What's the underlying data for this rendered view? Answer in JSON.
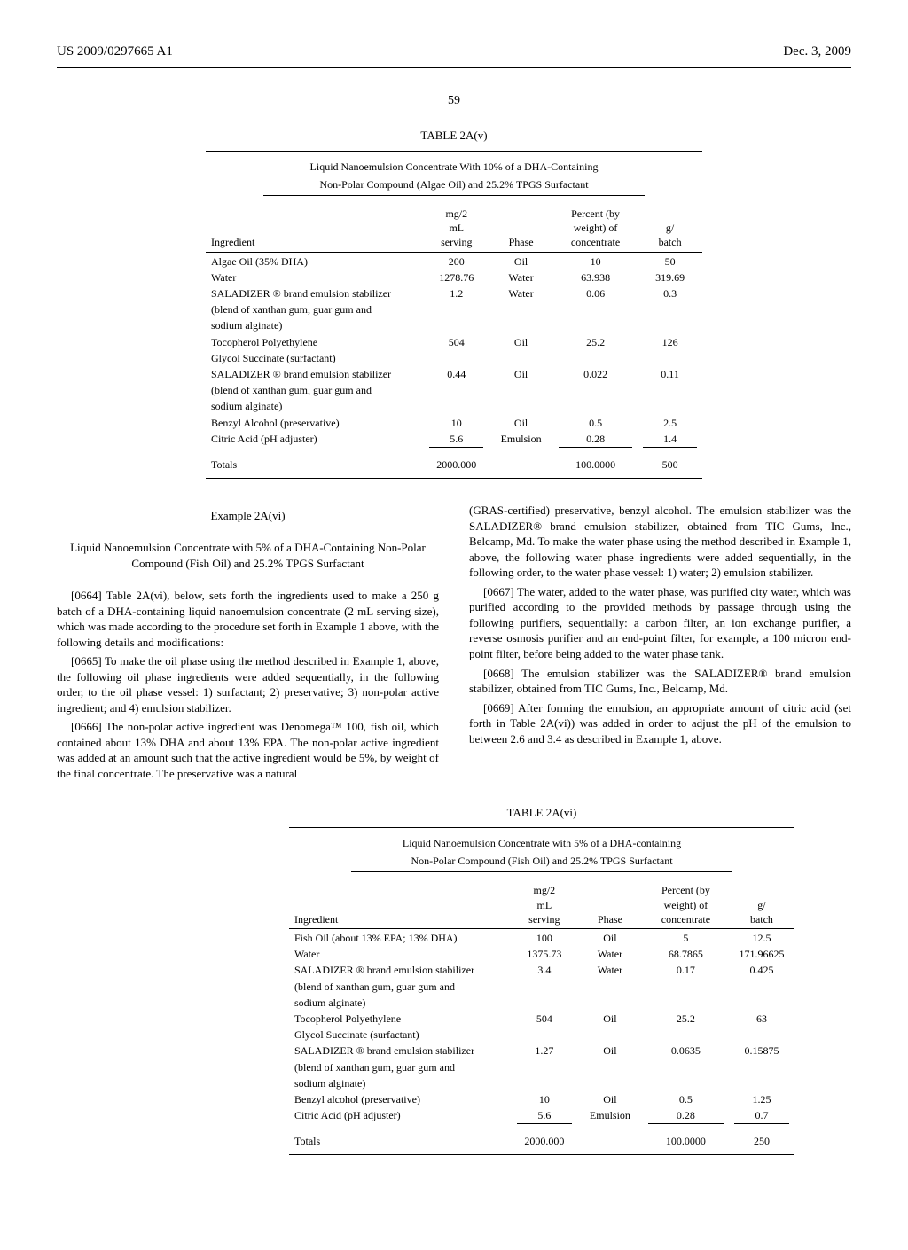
{
  "header": {
    "left": "US 2009/0297665 A1",
    "right": "Dec. 3, 2009"
  },
  "page_number": "59",
  "table_2a_v": {
    "title": "TABLE 2A(v)",
    "subtitle1": "Liquid Nanoemulsion Concentrate With 10% of a DHA-Containing",
    "subtitle2": "Non-Polar Compound (Algae Oil) and 25.2% TPGS Surfactant",
    "columns": {
      "c1": "Ingredient",
      "c2a": "mg/2",
      "c2b": "mL",
      "c2c": "serving",
      "c3": "Phase",
      "c4a": "Percent (by",
      "c4b": "weight) of",
      "c4c": "concentrate",
      "c5a": "g/",
      "c5b": "batch"
    },
    "rows": [
      {
        "ing": "Algae Oil (35% DHA)",
        "mg": "200",
        "phase": "Oil",
        "pct": "10",
        "g": "50"
      },
      {
        "ing": "Water",
        "mg": "1278.76",
        "phase": "Water",
        "pct": "63.938",
        "g": "319.69"
      },
      {
        "ing": "SALADIZER ® brand emulsion stabilizer",
        "mg": "1.2",
        "phase": "Water",
        "pct": "0.06",
        "g": "0.3"
      },
      {
        "ing": "(blend of xanthan gum, guar gum and",
        "mg": "",
        "phase": "",
        "pct": "",
        "g": ""
      },
      {
        "ing": "sodium alginate)",
        "mg": "",
        "phase": "",
        "pct": "",
        "g": ""
      },
      {
        "ing": "Tocopherol Polyethylene",
        "mg": "504",
        "phase": "Oil",
        "pct": "25.2",
        "g": "126"
      },
      {
        "ing": "Glycol Succinate (surfactant)",
        "mg": "",
        "phase": "",
        "pct": "",
        "g": ""
      },
      {
        "ing": "SALADIZER ® brand emulsion stabilizer",
        "mg": "0.44",
        "phase": "Oil",
        "pct": "0.022",
        "g": "0.11"
      },
      {
        "ing": "(blend of xanthan gum, guar gum and",
        "mg": "",
        "phase": "",
        "pct": "",
        "g": ""
      },
      {
        "ing": "sodium alginate)",
        "mg": "",
        "phase": "",
        "pct": "",
        "g": ""
      },
      {
        "ing": "Benzyl Alcohol (preservative)",
        "mg": "10",
        "phase": "Oil",
        "pct": "0.5",
        "g": "2.5"
      },
      {
        "ing": "Citric Acid (pH adjuster)",
        "mg": "5.6",
        "phase": "Emulsion",
        "pct": "0.28",
        "g": "1.4"
      }
    ],
    "totals": {
      "ing": "Totals",
      "mg": "2000.000",
      "phase": "",
      "pct": "100.0000",
      "g": "500"
    }
  },
  "example": {
    "title": "Example 2A(vi)",
    "subtitle": "Liquid Nanoemulsion Concentrate with 5% of a DHA-Containing Non-Polar Compound (Fish Oil) and 25.2% TPGS Surfactant"
  },
  "paras": {
    "p0664": "[0664]   Table 2A(vi), below, sets forth the ingredients used to make a 250 g batch of a DHA-containing liquid nanoemulsion concentrate (2 mL serving size), which was made according to the procedure set forth in Example 1 above, with the following details and modifications:",
    "p0665": "[0665]   To make the oil phase using the method described in Example 1, above, the following oil phase ingredients were added sequentially, in the following order, to the oil phase vessel: 1) surfactant; 2) preservative; 3) non-polar active ingredient; and 4) emulsion stabilizer.",
    "p0666": "[0666]   The non-polar active ingredient was Denomega™ 100, fish oil, which contained about 13% DHA and about 13% EPA. The non-polar active ingredient was added at an amount such that the active ingredient would be 5%, by weight of the final concentrate. The preservative was a natural",
    "p_right1": "(GRAS-certified) preservative, benzyl alcohol. The emulsion stabilizer was the SALADIZER® brand emulsion stabilizer, obtained from TIC Gums, Inc., Belcamp, Md. To make the water phase using the method described in Example 1, above, the following water phase ingredients were added sequentially, in the following order, to the water phase vessel: 1) water; 2) emulsion stabilizer.",
    "p0667": "[0667]   The water, added to the water phase, was purified city water, which was purified according to the provided methods by passage through using the following purifiers, sequentially: a carbon filter, an ion exchange purifier, a reverse osmosis purifier and an end-point filter, for example, a 100 micron end-point filter, before being added to the water phase tank.",
    "p0668": "[0668]   The emulsion stabilizer was the SALADIZER® brand emulsion stabilizer, obtained from TIC Gums, Inc., Belcamp, Md.",
    "p0669": "[0669]   After forming the emulsion, an appropriate amount of citric acid (set forth in Table 2A(vi)) was added in order to adjust the pH of the emulsion to between 2.6 and 3.4 as described in Example 1, above."
  },
  "table_2a_vi": {
    "title": "TABLE 2A(vi)",
    "subtitle1": "Liquid Nanoemulsion Concentrate with 5% of a DHA-containing",
    "subtitle2": "Non-Polar Compound (Fish Oil) and 25.2% TPGS Surfactant",
    "columns": {
      "c1": "Ingredient",
      "c2a": "mg/2",
      "c2b": "mL",
      "c2c": "serving",
      "c3": "Phase",
      "c4a": "Percent (by",
      "c4b": "weight) of",
      "c4c": "concentrate",
      "c5a": "g/",
      "c5b": "batch"
    },
    "rows": [
      {
        "ing": "Fish Oil (about 13% EPA; 13% DHA)",
        "mg": "100",
        "phase": "Oil",
        "pct": "5",
        "g": "12.5"
      },
      {
        "ing": "Water",
        "mg": "1375.73",
        "phase": "Water",
        "pct": "68.7865",
        "g": "171.96625"
      },
      {
        "ing": "SALADIZER ® brand emulsion stabilizer",
        "mg": "3.4",
        "phase": "Water",
        "pct": "0.17",
        "g": "0.425"
      },
      {
        "ing": "(blend of xanthan gum, guar gum and",
        "mg": "",
        "phase": "",
        "pct": "",
        "g": ""
      },
      {
        "ing": "sodium alginate)",
        "mg": "",
        "phase": "",
        "pct": "",
        "g": ""
      },
      {
        "ing": "Tocopherol Polyethylene",
        "mg": "504",
        "phase": "Oil",
        "pct": "25.2",
        "g": "63"
      },
      {
        "ing": "Glycol Succinate (surfactant)",
        "mg": "",
        "phase": "",
        "pct": "",
        "g": ""
      },
      {
        "ing": "SALADIZER ® brand emulsion stabilizer",
        "mg": "1.27",
        "phase": "Oil",
        "pct": "0.0635",
        "g": "0.15875"
      },
      {
        "ing": "(blend of xanthan gum, guar gum and",
        "mg": "",
        "phase": "",
        "pct": "",
        "g": ""
      },
      {
        "ing": "sodium alginate)",
        "mg": "",
        "phase": "",
        "pct": "",
        "g": ""
      },
      {
        "ing": "Benzyl alcohol (preservative)",
        "mg": "10",
        "phase": "Oil",
        "pct": "0.5",
        "g": "1.25"
      },
      {
        "ing": "Citric Acid (pH adjuster)",
        "mg": "5.6",
        "phase": "Emulsion",
        "pct": "0.28",
        "g": "0.7"
      }
    ],
    "totals": {
      "ing": "Totals",
      "mg": "2000.000",
      "phase": "",
      "pct": "100.0000",
      "g": "250"
    }
  }
}
